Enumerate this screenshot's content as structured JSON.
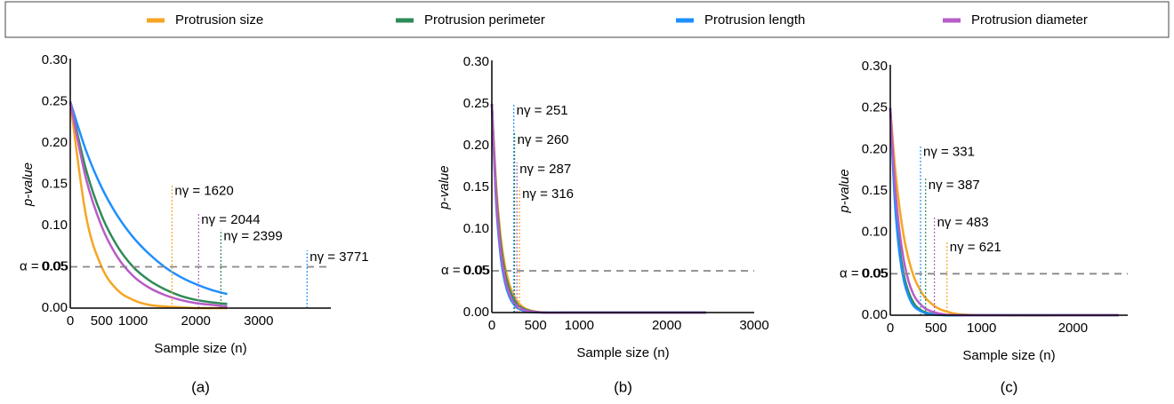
{
  "chart_data": [
    {
      "type": "line",
      "caption": "(a)",
      "xlabel": "Sample size (n)",
      "ylabel": "p-value",
      "x": [
        0,
        250,
        500,
        750,
        1000,
        1250,
        1500,
        1750,
        2000,
        2250,
        2500
      ],
      "series": [
        {
          "name": "Protrusion size",
          "color": "#f5a623",
          "values": [
            0.25,
            0.112,
            0.05,
            0.022,
            0.01,
            0.004,
            0.002,
            0.001,
            0.0,
            0.0,
            0.0
          ]
        },
        {
          "name": "Protrusion perimeter",
          "color": "#2e8b57",
          "values": [
            0.25,
            0.168,
            0.112,
            0.075,
            0.05,
            0.034,
            0.023,
            0.015,
            0.01,
            0.007,
            0.005
          ]
        },
        {
          "name": "Protrusion length",
          "color": "#1e90ff",
          "values": [
            0.25,
            0.191,
            0.146,
            0.112,
            0.086,
            0.066,
            0.05,
            0.038,
            0.029,
            0.022,
            0.017
          ]
        },
        {
          "name": "Protrusion diameter",
          "color": "#b85cc8",
          "values": [
            0.25,
            0.157,
            0.099,
            0.062,
            0.039,
            0.025,
            0.016,
            0.01,
            0.006,
            0.004,
            0.002
          ]
        }
      ],
      "xlim": [
        0,
        4150
      ],
      "ylim": [
        0,
        0.3
      ],
      "xticks": [
        0,
        500,
        1000,
        2000,
        3000
      ],
      "yticks": [
        {
          "value": 0,
          "label": "0.00"
        },
        {
          "value": 0.05,
          "label": "0.05"
        },
        {
          "value": 0.1,
          "label": "0.10"
        },
        {
          "value": 0.15,
          "label": "0.15"
        },
        {
          "value": 0.2,
          "label": "0.20"
        },
        {
          "value": 0.25,
          "label": "0.25"
        },
        {
          "value": 0.3,
          "label": "0.30"
        }
      ],
      "threshold": {
        "value": 0.05,
        "label": "α = 0.05"
      },
      "annotations": [
        {
          "x": 1620,
          "top": 0.15,
          "label": "nγ = 1620",
          "color": "#f5a623"
        },
        {
          "x": 2044,
          "top": 0.115,
          "label": "nγ = 2044",
          "color": "#b85cc8"
        },
        {
          "x": 2399,
          "top": 0.095,
          "label": "nγ = 2399",
          "color": "#2e8b57"
        },
        {
          "x": 3771,
          "top": 0.07,
          "label": "nγ = 3771",
          "color": "#1e90ff"
        }
      ]
    },
    {
      "type": "line",
      "caption": "(b)",
      "xlabel": "Sample size (n)",
      "ylabel": "p-value",
      "x": [
        0,
        50,
        100,
        150,
        200,
        250,
        300,
        400,
        600,
        1000,
        2450
      ],
      "series": [
        {
          "color": "#f5a623",
          "values": [
            0.25,
            0.152,
            0.092,
            0.056,
            0.034,
            0.021,
            0.012,
            0.004,
            0.0,
            0.0,
            0.0
          ]
        },
        {
          "color": "#2e8b57",
          "values": [
            0.25,
            0.144,
            0.083,
            0.048,
            0.028,
            0.016,
            0.009,
            0.003,
            0.0,
            0.0,
            0.0
          ]
        },
        {
          "color": "#1e90ff",
          "values": [
            0.25,
            0.13,
            0.068,
            0.036,
            0.019,
            0.01,
            0.005,
            0.001,
            0.0,
            0.0,
            0.0
          ]
        },
        {
          "color": "#b85cc8",
          "values": [
            0.25,
            0.137,
            0.075,
            0.041,
            0.023,
            0.012,
            0.007,
            0.002,
            0.0,
            0.0,
            0.0
          ]
        }
      ],
      "xlim": [
        0,
        3000
      ],
      "ylim": [
        0,
        0.3
      ],
      "xticks": [
        0,
        500,
        1000,
        2000,
        3000
      ],
      "yticks": [
        {
          "value": 0,
          "label": "0.00"
        },
        {
          "value": 0.05,
          "label": "0.05"
        },
        {
          "value": 0.1,
          "label": "0.10"
        },
        {
          "value": 0.15,
          "label": "0.15"
        },
        {
          "value": 0.2,
          "label": "0.20"
        },
        {
          "value": 0.25,
          "label": "0.25"
        },
        {
          "value": 0.3,
          "label": "0.30"
        }
      ],
      "threshold": {
        "value": 0.05,
        "label": "α = 0.05"
      },
      "annotations": [
        {
          "x": 251,
          "top": 0.25,
          "label": "nγ = 251",
          "color": "#1e90ff"
        },
        {
          "x": 260,
          "top": 0.215,
          "label": "nγ = 260",
          "color": "#2e8b57"
        },
        {
          "x": 287,
          "top": 0.18,
          "label": "nγ = 287",
          "color": "#b85cc8"
        },
        {
          "x": 316,
          "top": 0.15,
          "label": "nγ = 316",
          "color": "#f5a623"
        }
      ]
    },
    {
      "type": "line",
      "caption": "(c)",
      "xlabel": "Sample size (n)",
      "ylabel": "p-value",
      "x": [
        0,
        50,
        100,
        150,
        200,
        250,
        300,
        400,
        600,
        1000,
        2500
      ],
      "series": [
        {
          "color": "#f5a623",
          "values": [
            0.25,
            0.181,
            0.131,
            0.094,
            0.068,
            0.049,
            0.036,
            0.019,
            0.005,
            0.0,
            0.0
          ]
        },
        {
          "color": "#2e8b57",
          "values": [
            0.25,
            0.144,
            0.083,
            0.048,
            0.028,
            0.016,
            0.009,
            0.003,
            0.0,
            0.0,
            0.0
          ]
        },
        {
          "color": "#1e90ff",
          "values": [
            0.25,
            0.137,
            0.075,
            0.041,
            0.023,
            0.012,
            0.007,
            0.002,
            0.0,
            0.0,
            0.0
          ]
        },
        {
          "color": "#b85cc8",
          "values": [
            0.25,
            0.159,
            0.102,
            0.065,
            0.041,
            0.026,
            0.017,
            0.007,
            0.001,
            0.0,
            0.0
          ]
        }
      ],
      "xlim": [
        0,
        2600
      ],
      "ylim": [
        0,
        0.3
      ],
      "xticks": [
        0,
        500,
        1000,
        2000
      ],
      "yticks": [
        {
          "value": 0,
          "label": "0.00"
        },
        {
          "value": 0.05,
          "label": "0.05"
        },
        {
          "value": 0.1,
          "label": "0.10"
        },
        {
          "value": 0.15,
          "label": "0.15"
        },
        {
          "value": 0.2,
          "label": "0.20"
        },
        {
          "value": 0.25,
          "label": "0.25"
        },
        {
          "value": 0.3,
          "label": "0.30"
        }
      ],
      "threshold": {
        "value": 0.05,
        "label": "α = 0.05"
      },
      "annotations": [
        {
          "x": 331,
          "top": 0.205,
          "label": "nγ = 331",
          "color": "#1e90ff"
        },
        {
          "x": 387,
          "top": 0.165,
          "label": "nγ = 387",
          "color": "#2e8b57"
        },
        {
          "x": 483,
          "top": 0.12,
          "label": "nγ = 483",
          "color": "#b85cc8"
        },
        {
          "x": 621,
          "top": 0.09,
          "label": "nγ = 621",
          "color": "#f5a623"
        }
      ]
    }
  ]
}
